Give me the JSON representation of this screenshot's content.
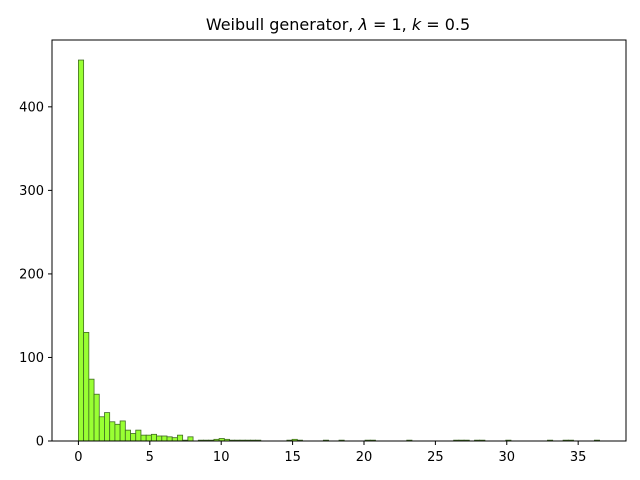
{
  "chart_data": {
    "type": "bar",
    "title": "Weibull generator, λ = 1, k = 0.5",
    "title_parts": {
      "lead": "Weibull generator, ",
      "lambda_sym": "λ",
      "eq1": " = 1, ",
      "k_sym": "k",
      "eq2": " = 0.5"
    },
    "xlabel": "",
    "ylabel": "",
    "xlim": [
      -1.85,
      38.35
    ],
    "ylim": [
      0,
      480
    ],
    "x_ticks": [
      0,
      5,
      10,
      15,
      20,
      25,
      30,
      35
    ],
    "y_ticks": [
      0,
      100,
      200,
      300,
      400
    ],
    "bin_width": 0.365,
    "bin_start": 0.0,
    "values": [
      456,
      130,
      74,
      56,
      29,
      34,
      23,
      20,
      24,
      13,
      9,
      13,
      7,
      7,
      8,
      6,
      6,
      5,
      4,
      7,
      1,
      5,
      0,
      1,
      1,
      1,
      2,
      3,
      2,
      1,
      1,
      1,
      1,
      1,
      1,
      0,
      0,
      0,
      0,
      0,
      1,
      2,
      1,
      0,
      0,
      0,
      0,
      1,
      0,
      0,
      1,
      0,
      0,
      0,
      0,
      1,
      1,
      0,
      0,
      0,
      0,
      0,
      0,
      1,
      0,
      0,
      0,
      0,
      0,
      0,
      0,
      0,
      1,
      1,
      1,
      0,
      1,
      1,
      0,
      0,
      0,
      0,
      1,
      0,
      0,
      0,
      0,
      0,
      0,
      0,
      1,
      0,
      0,
      1,
      1,
      0,
      0,
      0,
      0,
      1
    ],
    "grid": false,
    "legend": "none",
    "colors": {
      "fill": "#99ff33",
      "edge": "#3f6b22"
    }
  }
}
